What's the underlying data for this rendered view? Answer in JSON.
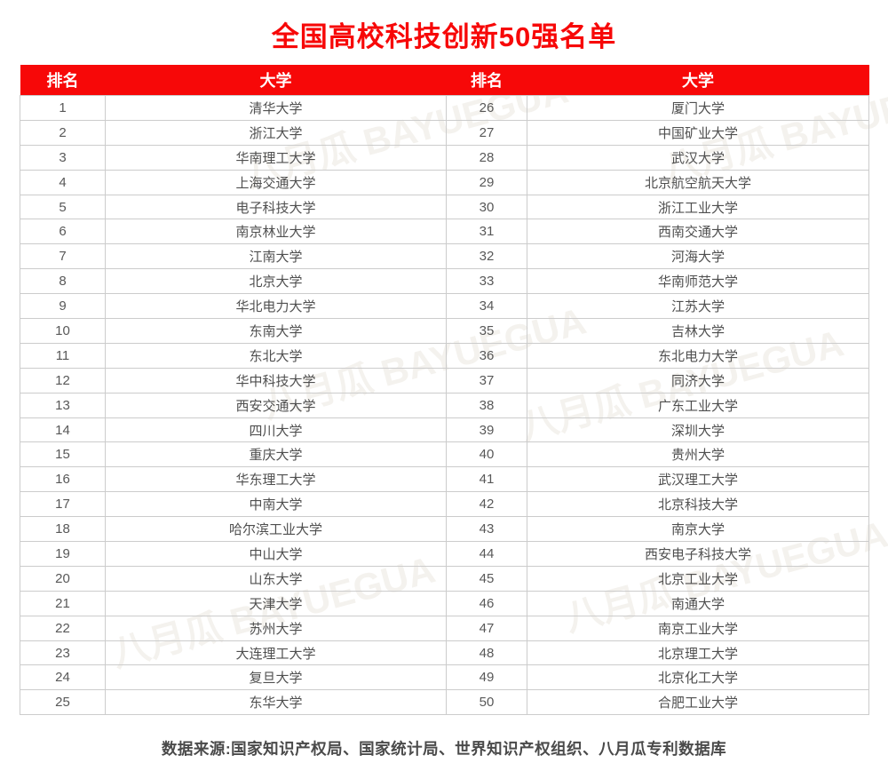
{
  "title": "全国高校科技创新50强名单",
  "footer": "数据来源:国家知识产权局、国家统计局、世界知识产权组织、八月瓜专利数据库",
  "watermark": {
    "label": "八月瓜 BAYUEGUA"
  },
  "colors": {
    "accent_red": "#f70808",
    "header_text": "#ffffff",
    "body_text": "#4f4f4f",
    "border": "#cccccc",
    "footer_text": "#4a4a4a"
  },
  "table": {
    "columns": [
      "排名",
      "大学",
      "排名",
      "大学"
    ],
    "left": [
      {
        "rank": "1",
        "university": "清华大学"
      },
      {
        "rank": "2",
        "university": "浙江大学"
      },
      {
        "rank": "3",
        "university": "华南理工大学"
      },
      {
        "rank": "4",
        "university": "上海交通大学"
      },
      {
        "rank": "5",
        "university": "电子科技大学"
      },
      {
        "rank": "6",
        "university": "南京林业大学"
      },
      {
        "rank": "7",
        "university": "江南大学"
      },
      {
        "rank": "8",
        "university": "北京大学"
      },
      {
        "rank": "9",
        "university": "华北电力大学"
      },
      {
        "rank": "10",
        "university": "东南大学"
      },
      {
        "rank": "11",
        "university": "东北大学"
      },
      {
        "rank": "12",
        "university": "华中科技大学"
      },
      {
        "rank": "13",
        "university": "西安交通大学"
      },
      {
        "rank": "14",
        "university": "四川大学"
      },
      {
        "rank": "15",
        "university": "重庆大学"
      },
      {
        "rank": "16",
        "university": "华东理工大学"
      },
      {
        "rank": "17",
        "university": "中南大学"
      },
      {
        "rank": "18",
        "university": "哈尔滨工业大学"
      },
      {
        "rank": "19",
        "university": "中山大学"
      },
      {
        "rank": "20",
        "university": "山东大学"
      },
      {
        "rank": "21",
        "university": "天津大学"
      },
      {
        "rank": "22",
        "university": "苏州大学"
      },
      {
        "rank": "23",
        "university": "大连理工大学"
      },
      {
        "rank": "24",
        "university": "复旦大学"
      },
      {
        "rank": "25",
        "university": "东华大学"
      }
    ],
    "right": [
      {
        "rank": "26",
        "university": "厦门大学"
      },
      {
        "rank": "27",
        "university": "中国矿业大学"
      },
      {
        "rank": "28",
        "university": "武汉大学"
      },
      {
        "rank": "29",
        "university": "北京航空航天大学"
      },
      {
        "rank": "30",
        "university": "浙江工业大学"
      },
      {
        "rank": "31",
        "university": "西南交通大学"
      },
      {
        "rank": "32",
        "university": "河海大学"
      },
      {
        "rank": "33",
        "university": "华南师范大学"
      },
      {
        "rank": "34",
        "university": "江苏大学"
      },
      {
        "rank": "35",
        "university": "吉林大学"
      },
      {
        "rank": "36",
        "university": "东北电力大学"
      },
      {
        "rank": "37",
        "university": "同济大学"
      },
      {
        "rank": "38",
        "university": "广东工业大学"
      },
      {
        "rank": "39",
        "university": "深圳大学"
      },
      {
        "rank": "40",
        "university": "贵州大学"
      },
      {
        "rank": "41",
        "university": "武汉理工大学"
      },
      {
        "rank": "42",
        "university": "北京科技大学"
      },
      {
        "rank": "43",
        "university": "南京大学"
      },
      {
        "rank": "44",
        "university": "西安电子科技大学"
      },
      {
        "rank": "45",
        "university": "北京工业大学"
      },
      {
        "rank": "46",
        "university": "南通大学"
      },
      {
        "rank": "47",
        "university": "南京工业大学"
      },
      {
        "rank": "48",
        "university": "北京理工大学"
      },
      {
        "rank": "49",
        "university": "北京化工大学"
      },
      {
        "rank": "50",
        "university": "合肥工业大学"
      }
    ]
  }
}
